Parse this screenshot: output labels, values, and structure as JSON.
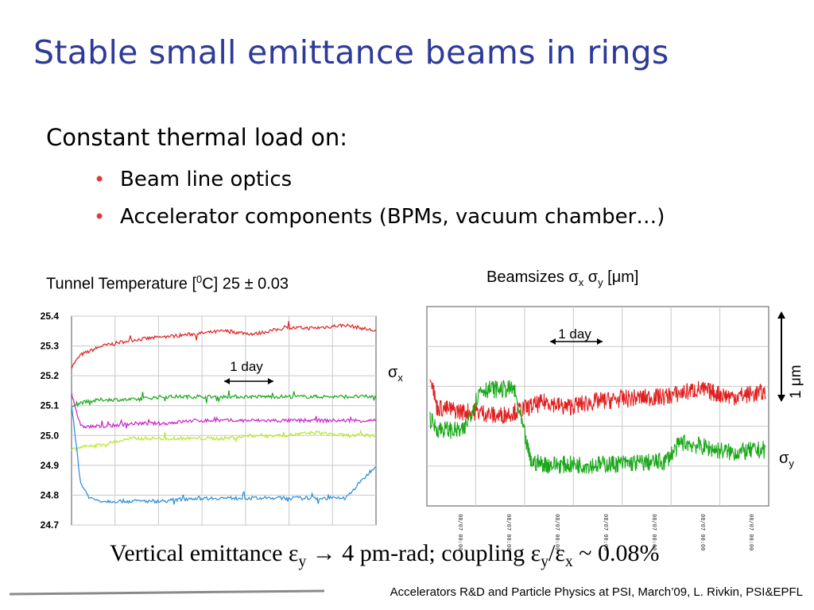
{
  "slide": {
    "title": "Stable small emittance beams in rings",
    "lead": "Constant thermal load on:",
    "bullets": [
      "Beam line optics",
      "Accelerator components (BPMs, vacuum chamber…)"
    ],
    "bottom_text": {
      "prefix": "Vertical emittance ε",
      "sub1": "y",
      "middle": " → 4 pm-rad; coupling  ε",
      "sub2": "y",
      "slash": "/ε",
      "sub3": "x",
      "suffix": " ~ 0.08%"
    },
    "footer": "Accelerators R&D and Particle Physics at PSI, March’09, L. Rivkin, PSI&EPFL"
  },
  "colors": {
    "title": "#2e3a99",
    "bullet": "#e23a3a",
    "red": "#e02020",
    "green": "#1aa81a",
    "magenta": "#cc22cc",
    "yellowgreen": "#b8e830",
    "blue": "#2a8ad8"
  },
  "chart_data": [
    {
      "type": "line",
      "title_parts": {
        "pre": "Tunnel Temperature [",
        "sup": "0",
        "post": "C] 25 ± 0.03"
      },
      "ylim": [
        24.7,
        25.4
      ],
      "yticks": [
        "25.4",
        "25.3",
        "25.2",
        "25.1",
        "25.0",
        "24.9",
        "24.8",
        "24.7"
      ],
      "annotation": "1 day",
      "series": [
        {
          "color": "#e02020",
          "x": [
            0,
            0.03,
            0.1,
            0.2,
            0.3,
            0.4,
            0.5,
            0.6,
            0.7,
            0.8,
            0.9,
            1.0
          ],
          "values": [
            25.23,
            25.27,
            25.3,
            25.32,
            25.33,
            25.34,
            25.35,
            25.34,
            25.36,
            25.36,
            25.37,
            25.35
          ]
        },
        {
          "color": "#1aa81a",
          "x": [
            0,
            0.03,
            0.1,
            0.2,
            0.3,
            0.4,
            0.5,
            0.6,
            0.7,
            0.8,
            0.9,
            1.0
          ],
          "values": [
            25.09,
            25.11,
            25.12,
            25.12,
            25.13,
            25.13,
            25.13,
            25.13,
            25.13,
            25.13,
            25.13,
            25.13
          ]
        },
        {
          "color": "#cc22cc",
          "x": [
            0,
            0.03,
            0.1,
            0.2,
            0.3,
            0.4,
            0.5,
            0.6,
            0.7,
            0.8,
            0.9,
            1.0
          ],
          "values": [
            25.14,
            25.03,
            25.03,
            25.04,
            25.04,
            25.05,
            25.05,
            25.05,
            25.05,
            25.05,
            25.05,
            25.05
          ]
        },
        {
          "color": "#b8e830",
          "x": [
            0,
            0.03,
            0.1,
            0.2,
            0.3,
            0.4,
            0.5,
            0.6,
            0.7,
            0.8,
            0.9,
            1.0
          ],
          "values": [
            24.95,
            24.96,
            24.97,
            24.99,
            24.99,
            24.99,
            24.99,
            25.0,
            25.0,
            25.01,
            25.0,
            25.0
          ]
        },
        {
          "color": "#2a8ad8",
          "x": [
            0,
            0.03,
            0.06,
            0.1,
            0.2,
            0.3,
            0.4,
            0.5,
            0.6,
            0.7,
            0.8,
            0.9,
            1.0
          ],
          "values": [
            25.1,
            24.84,
            24.79,
            24.78,
            24.78,
            24.78,
            24.79,
            24.79,
            24.79,
            24.79,
            24.79,
            24.79,
            24.9
          ]
        }
      ]
    },
    {
      "type": "line",
      "title_parts": {
        "pre": "Beamsizes σ",
        "sub1": "x",
        "mid": " σ",
        "sub2": "y",
        "post": " [μm]"
      },
      "annotation": "1 day",
      "scale_label": "1 μm",
      "label_sx": {
        "text": "σ",
        "sub": "x"
      },
      "label_sy": {
        "text": "σ",
        "sub": "y"
      },
      "xticks": [
        "08/07 00:00",
        "08/07 00:00",
        "08/07 00:00",
        "08/07 00:00",
        "08/07 00:00",
        "08/07 00:00",
        "08/07 00:00"
      ],
      "series": [
        {
          "name": "σx",
          "color": "#e02020",
          "x": [
            0,
            0.02,
            0.1,
            0.15,
            0.2,
            0.25,
            0.35,
            0.4,
            0.5,
            0.6,
            0.7,
            0.8,
            0.9,
            1.0
          ],
          "values": [
            0.62,
            0.38,
            0.35,
            0.35,
            0.32,
            0.35,
            0.42,
            0.38,
            0.42,
            0.44,
            0.45,
            0.5,
            0.45,
            0.48
          ]
        },
        {
          "name": "σy",
          "color": "#1aa81a",
          "x": [
            0,
            0.02,
            0.1,
            0.15,
            0.25,
            0.3,
            0.35,
            0.5,
            0.7,
            0.75,
            0.85,
            0.9,
            1.0
          ],
          "values": [
            0.3,
            0.24,
            0.22,
            0.5,
            0.5,
            0.02,
            0.0,
            0.0,
            0.02,
            0.15,
            0.1,
            0.08,
            0.1
          ]
        }
      ]
    }
  ]
}
